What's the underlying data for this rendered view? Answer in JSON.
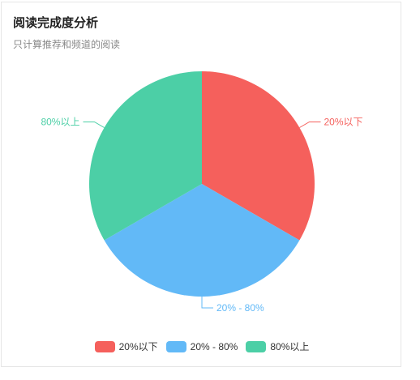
{
  "header": {
    "title": "阅读完成度分析",
    "subtitle": "只计算推荐和频道的阅读"
  },
  "chart_data": {
    "type": "pie",
    "title": "阅读完成度分析",
    "subtitle": "只计算推荐和频道的阅读",
    "slices": [
      {
        "label": "20%以下",
        "value": 1,
        "color": "#f5605c"
      },
      {
        "label": "20% - 80%",
        "value": 1,
        "color": "#62b9f7"
      },
      {
        "label": "80%以上",
        "value": 1,
        "color": "#4ccfa6"
      }
    ],
    "legend_position": "bottom"
  },
  "legend": {
    "items": [
      {
        "label": "20%以下",
        "color": "#f5605c"
      },
      {
        "label": "20% - 80%",
        "color": "#62b9f7"
      },
      {
        "label": "80%以上",
        "color": "#4ccfa6"
      }
    ]
  }
}
